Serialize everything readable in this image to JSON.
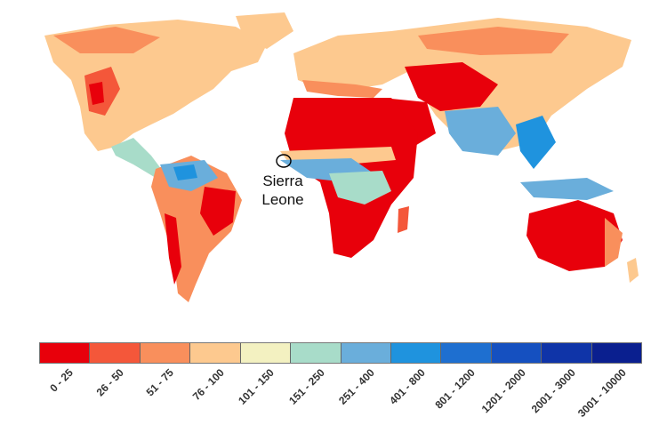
{
  "map": {
    "callout": {
      "line1": "Sierra",
      "line2": "Leone"
    }
  },
  "legend": {
    "categories": [
      "0 - 25",
      "26 - 50",
      "51 - 75",
      "76 - 100",
      "101 - 150",
      "151 - 250",
      "251 - 400",
      "401 - 800",
      "801 - 1200",
      "1201 - 2000",
      "2001 - 3000",
      "3001 - 10000"
    ],
    "colors": [
      "#e8000b",
      "#f4573a",
      "#f98f5c",
      "#fdc98f",
      "#f3f1c1",
      "#a8dcc9",
      "#6aaedb",
      "#1f93de",
      "#1e6fd0",
      "#1550c0",
      "#0f34a8",
      "#0a1f8f"
    ]
  }
}
